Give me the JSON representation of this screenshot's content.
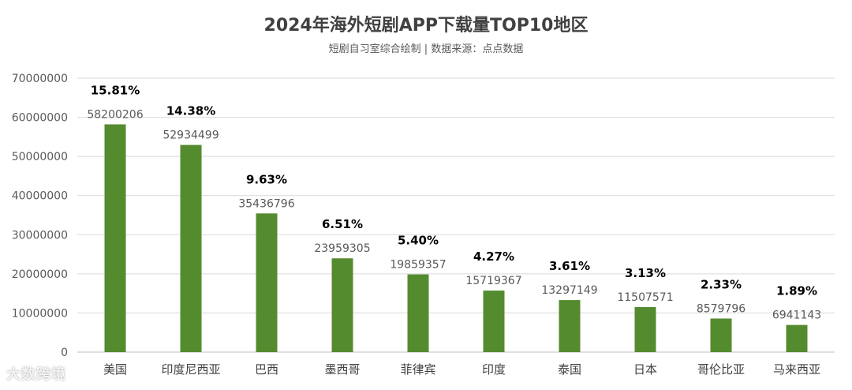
{
  "chart_data": {
    "type": "bar",
    "title": "2024年海外短剧APP下载量TOP10地区",
    "subtitle": "短剧自习室综合绘制 | 数据来源：点点数据",
    "categories": [
      "美国",
      "印度尼西亚",
      "巴西",
      "墨西哥",
      "菲律宾",
      "印度",
      "泰国",
      "日本",
      "哥伦比亚",
      "马来西亚"
    ],
    "values": [
      58200206,
      52934499,
      35436796,
      23959305,
      19859357,
      15719367,
      13297149,
      11507571,
      8579796,
      6941143
    ],
    "value_labels": [
      "58200206",
      "52934499",
      "35436796",
      "23959305",
      "19859357",
      "15719367",
      "13297149",
      "11507571",
      "8579796",
      "6941143"
    ],
    "percent_labels": [
      "15.81%",
      "14.38%",
      "9.63%",
      "6.51%",
      "5.40%",
      "4.27%",
      "3.61%",
      "3.13%",
      "2.33%",
      "1.89%"
    ],
    "ylim": [
      0,
      70000000
    ],
    "yticks": [
      "0",
      "10000000",
      "20000000",
      "30000000",
      "40000000",
      "50000000",
      "60000000",
      "70000000"
    ],
    "grid": true,
    "legend": "none",
    "bar_color": "#558b2f",
    "xlabel": "",
    "ylabel": ""
  },
  "watermark": "大数跨境"
}
